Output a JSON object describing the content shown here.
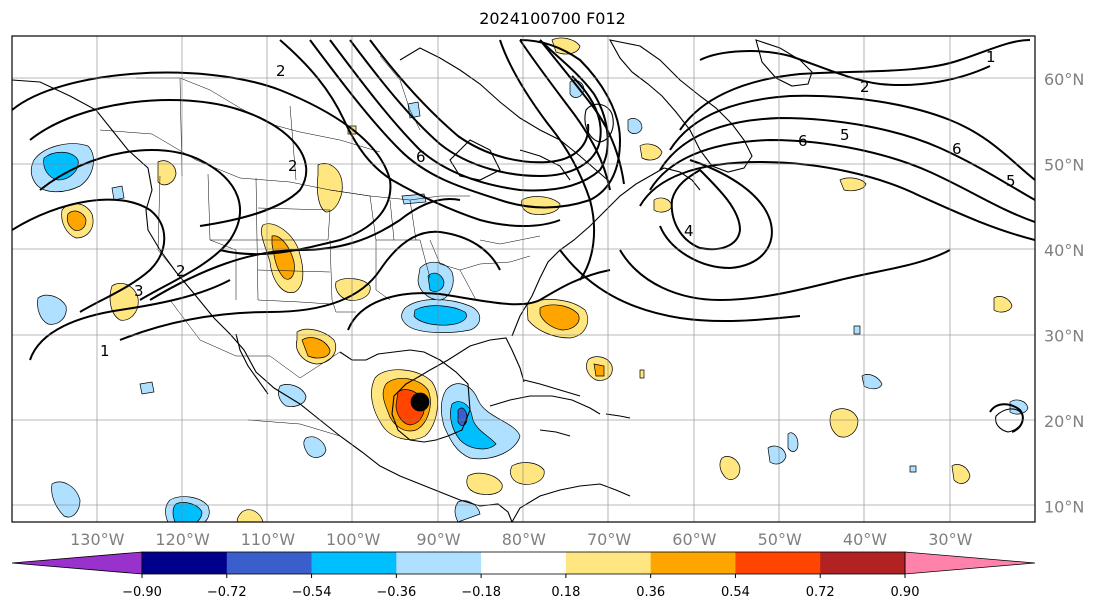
{
  "title": "2024100700 F012",
  "map": {
    "longitude_ticks": [
      {
        "lon": -130,
        "label": "130°W"
      },
      {
        "lon": -120,
        "label": "120°W"
      },
      {
        "lon": -110,
        "label": "110°W"
      },
      {
        "lon": -100,
        "label": "100°W"
      },
      {
        "lon": -90,
        "label": "90°W"
      },
      {
        "lon": -80,
        "label": "80°W"
      },
      {
        "lon": -70,
        "label": "70°W"
      },
      {
        "lon": -60,
        "label": "60°W"
      },
      {
        "lon": -50,
        "label": "50°W"
      },
      {
        "lon": -40,
        "label": "40°W"
      },
      {
        "lon": -30,
        "label": "30°W"
      }
    ],
    "latitude_ticks": [
      {
        "lat": 60,
        "label": "60°N"
      },
      {
        "lat": 50,
        "label": "50°N"
      },
      {
        "lat": 40,
        "label": "40°N"
      },
      {
        "lat": 30,
        "label": "30°N"
      },
      {
        "lat": 20,
        "label": "20°N"
      },
      {
        "lat": 10,
        "label": "10°N"
      }
    ],
    "contour_labels": [
      "2",
      "6",
      "2",
      "2",
      "3",
      "1",
      "6",
      "5",
      "6",
      "5",
      "4",
      "2",
      "1"
    ]
  },
  "colorbar": {
    "bounds": [
      "−0.90",
      "−0.72",
      "−0.54",
      "−0.36",
      "−0.18",
      "0.18",
      "0.36",
      "0.54",
      "0.72",
      "0.90"
    ],
    "colors": [
      "#9932cc",
      "#00008b",
      "#3a5fcd",
      "#00bfff",
      "#b0e0ff",
      "#ffffff",
      "#ffe680",
      "#ffa500",
      "#ff4500",
      "#b22222",
      "#ff82ab"
    ]
  }
}
